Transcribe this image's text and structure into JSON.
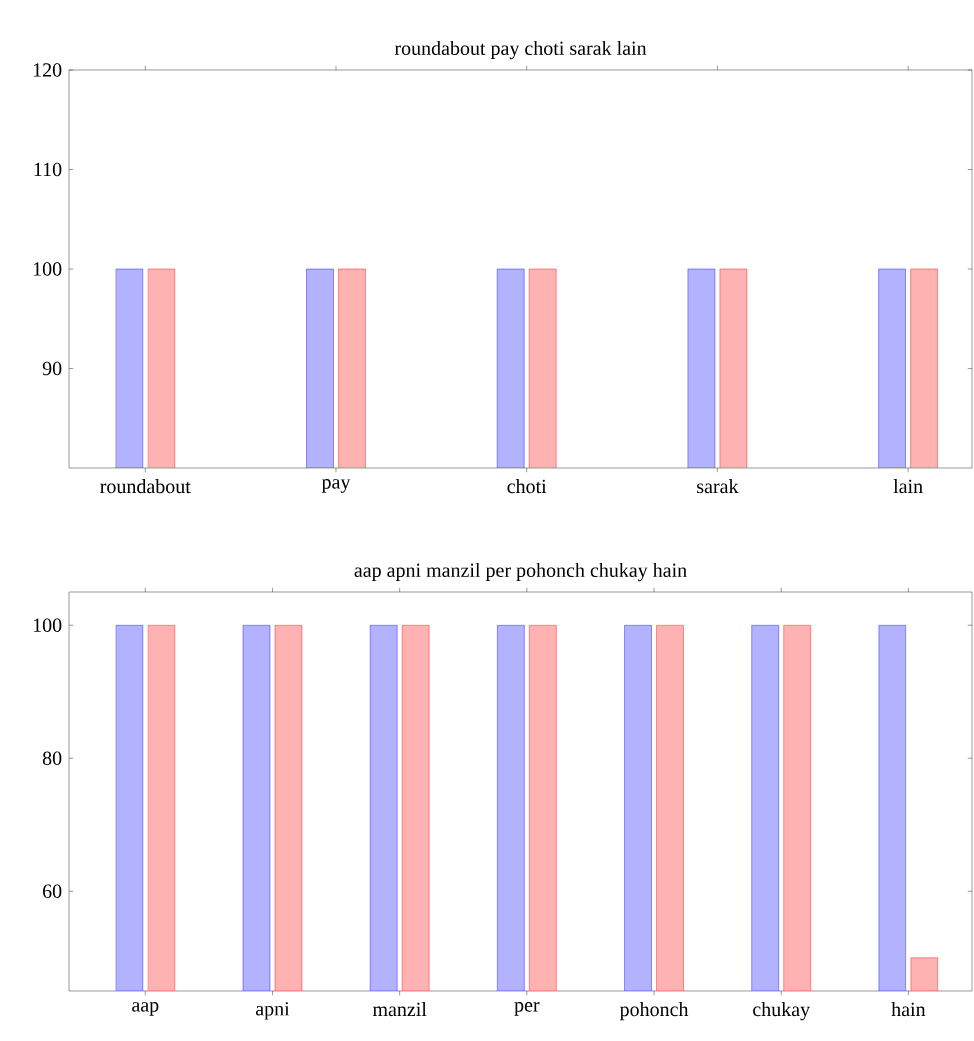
{
  "chart_data": [
    {
      "type": "bar",
      "title": "roundabout pay choti sarak lain",
      "categories": [
        "roundabout",
        "pay",
        "choti",
        "sarak",
        "lain"
      ],
      "series": [
        {
          "color": "#0000ff",
          "values": [
            100,
            100,
            100,
            100,
            100
          ]
        },
        {
          "color": "#ff0000",
          "values": [
            100,
            100,
            100,
            100,
            100
          ]
        }
      ],
      "ylim": [
        80,
        120
      ],
      "yticks": [
        90,
        100,
        110,
        120
      ]
    },
    {
      "type": "bar",
      "title": "aap apni manzil per pohonch chukay hain",
      "categories": [
        "aap",
        "apni",
        "manzil",
        "per",
        "pohonch",
        "chukay",
        "hain"
      ],
      "series": [
        {
          "color": "#0000ff",
          "values": [
            100,
            100,
            100,
            100,
            100,
            100,
            100
          ]
        },
        {
          "color": "#ff0000",
          "values": [
            100,
            100,
            100,
            100,
            100,
            100,
            50
          ]
        }
      ],
      "ylim": [
        45,
        105
      ],
      "yticks": [
        60,
        80,
        100
      ]
    }
  ]
}
